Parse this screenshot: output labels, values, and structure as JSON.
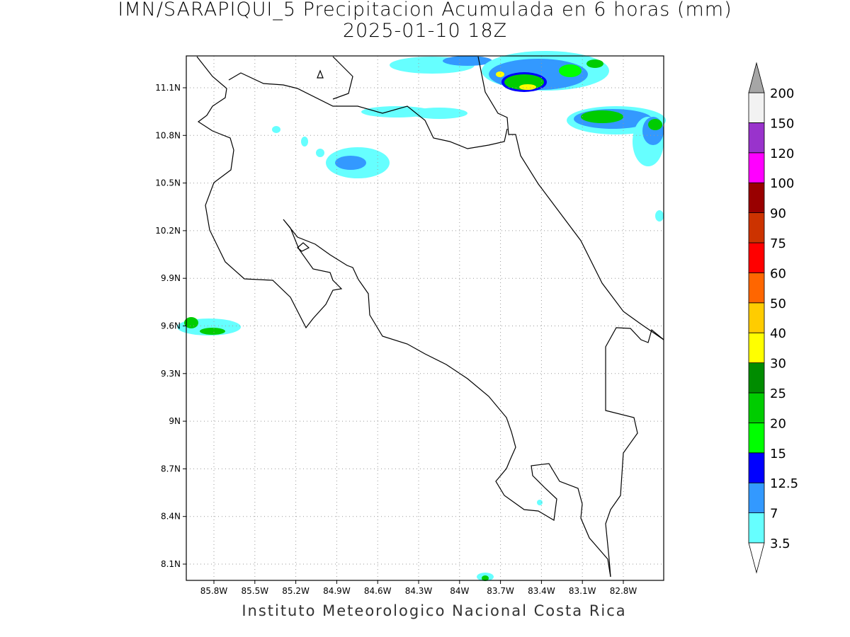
{
  "title": "IMN/SARAPIQUI_5 Precipitacion Acumulada en 6 horas (mm)",
  "subtitle": "2025-01-10 18Z",
  "map": {
    "lat_labels": [
      "11.1N",
      "10.8N",
      "10.5N",
      "10.2N",
      "9.9N",
      "9.6N",
      "9.3N",
      "9N",
      "8.7N",
      "8.4N",
      "8.1N"
    ],
    "lon_labels": [
      "85.8W",
      "85.5W",
      "85.2W",
      "84.9W",
      "84.6W",
      "84.3W",
      "84W",
      "83.7W",
      "83.4W",
      "83.1W",
      "82.8W"
    ],
    "grid": true
  },
  "colorbar": {
    "labels": [
      "3.5",
      "7",
      "12.5",
      "15",
      "20",
      "25",
      "30",
      "40",
      "50",
      "60",
      "75",
      "90",
      "100",
      "120",
      "150",
      "200"
    ],
    "colors": [
      "#66ffff",
      "#3399ff",
      "#0000ff",
      "#00ff00",
      "#00cc00",
      "#008c00",
      "#ffff00",
      "#ffcc00",
      "#ff6600",
      "#ff0000",
      "#cc3300",
      "#990000",
      "#ff00ff",
      "#9933cc",
      "#f2f2f2"
    ],
    "under_color": "#ffffff",
    "over_color": "#a6a6a6"
  },
  "footer": "Instituto Meteorologico Nacional Costa Rica"
}
